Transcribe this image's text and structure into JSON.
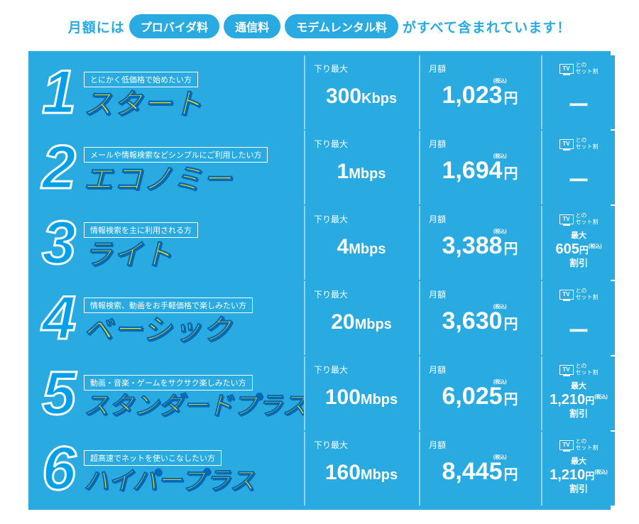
{
  "colors": {
    "primary_bg": "#29abe2",
    "accent_yellow": "#ffe100",
    "name_stroke": "#0068b7",
    "text_white": "#ffffff"
  },
  "header": {
    "lead": "月額には",
    "pills": [
      "プロバイダ料",
      "通信料",
      "モデムレンタル料"
    ],
    "tail": "がすべて含まれています！"
  },
  "column_labels": {
    "speed": "下り最大",
    "price": "月額",
    "tv_group": "との\nセット割",
    "tax_included": "(税込)"
  },
  "plans": [
    {
      "num": "1",
      "tagline": "とにかく低価格で始めたい方",
      "name": "スタート",
      "name_size": "normal",
      "speed_value": "300",
      "speed_unit": "Kbps",
      "price": "1,023",
      "price_unit": "円",
      "tv_discount": null
    },
    {
      "num": "2",
      "tagline": "メールや情報検索などシンプルにご利用したい方",
      "name": "エコノミー",
      "name_size": "normal",
      "speed_value": "1",
      "speed_unit": "Mbps",
      "price": "1,694",
      "price_unit": "円",
      "tv_discount": null
    },
    {
      "num": "3",
      "tagline": "情報検索を主に利用される方",
      "name": "ライト",
      "name_size": "normal",
      "speed_value": "4",
      "speed_unit": "Mbps",
      "price": "3,388",
      "price_unit": "円",
      "tv_discount": {
        "max": "最大",
        "amount": "605",
        "yen": "円",
        "off": "割引"
      }
    },
    {
      "num": "4",
      "tagline": "情報検索、動画をお手軽価格で楽しみたい方",
      "name": "ベーシック",
      "name_size": "normal",
      "speed_value": "20",
      "speed_unit": "Mbps",
      "price": "3,630",
      "price_unit": "円",
      "tv_discount": null
    },
    {
      "num": "5",
      "tagline": "動画・音楽・ゲームをサクサク楽しみたい方",
      "name": "スタンダードプラス",
      "name_size": "smaller",
      "speed_value": "100",
      "speed_unit": "Mbps",
      "price": "6,025",
      "price_unit": "円",
      "tv_discount": {
        "max": "最大",
        "amount": "1,210",
        "yen": "円",
        "off": "割引"
      }
    },
    {
      "num": "6",
      "tagline": "超高速でネットを使いこなしたい方",
      "name": "ハイパープラス",
      "name_size": "smaller",
      "speed_value": "160",
      "speed_unit": "Mbps",
      "price": "8,445",
      "price_unit": "円",
      "tv_discount": {
        "max": "最大",
        "amount": "1,210",
        "yen": "円",
        "off": "割引"
      }
    }
  ]
}
